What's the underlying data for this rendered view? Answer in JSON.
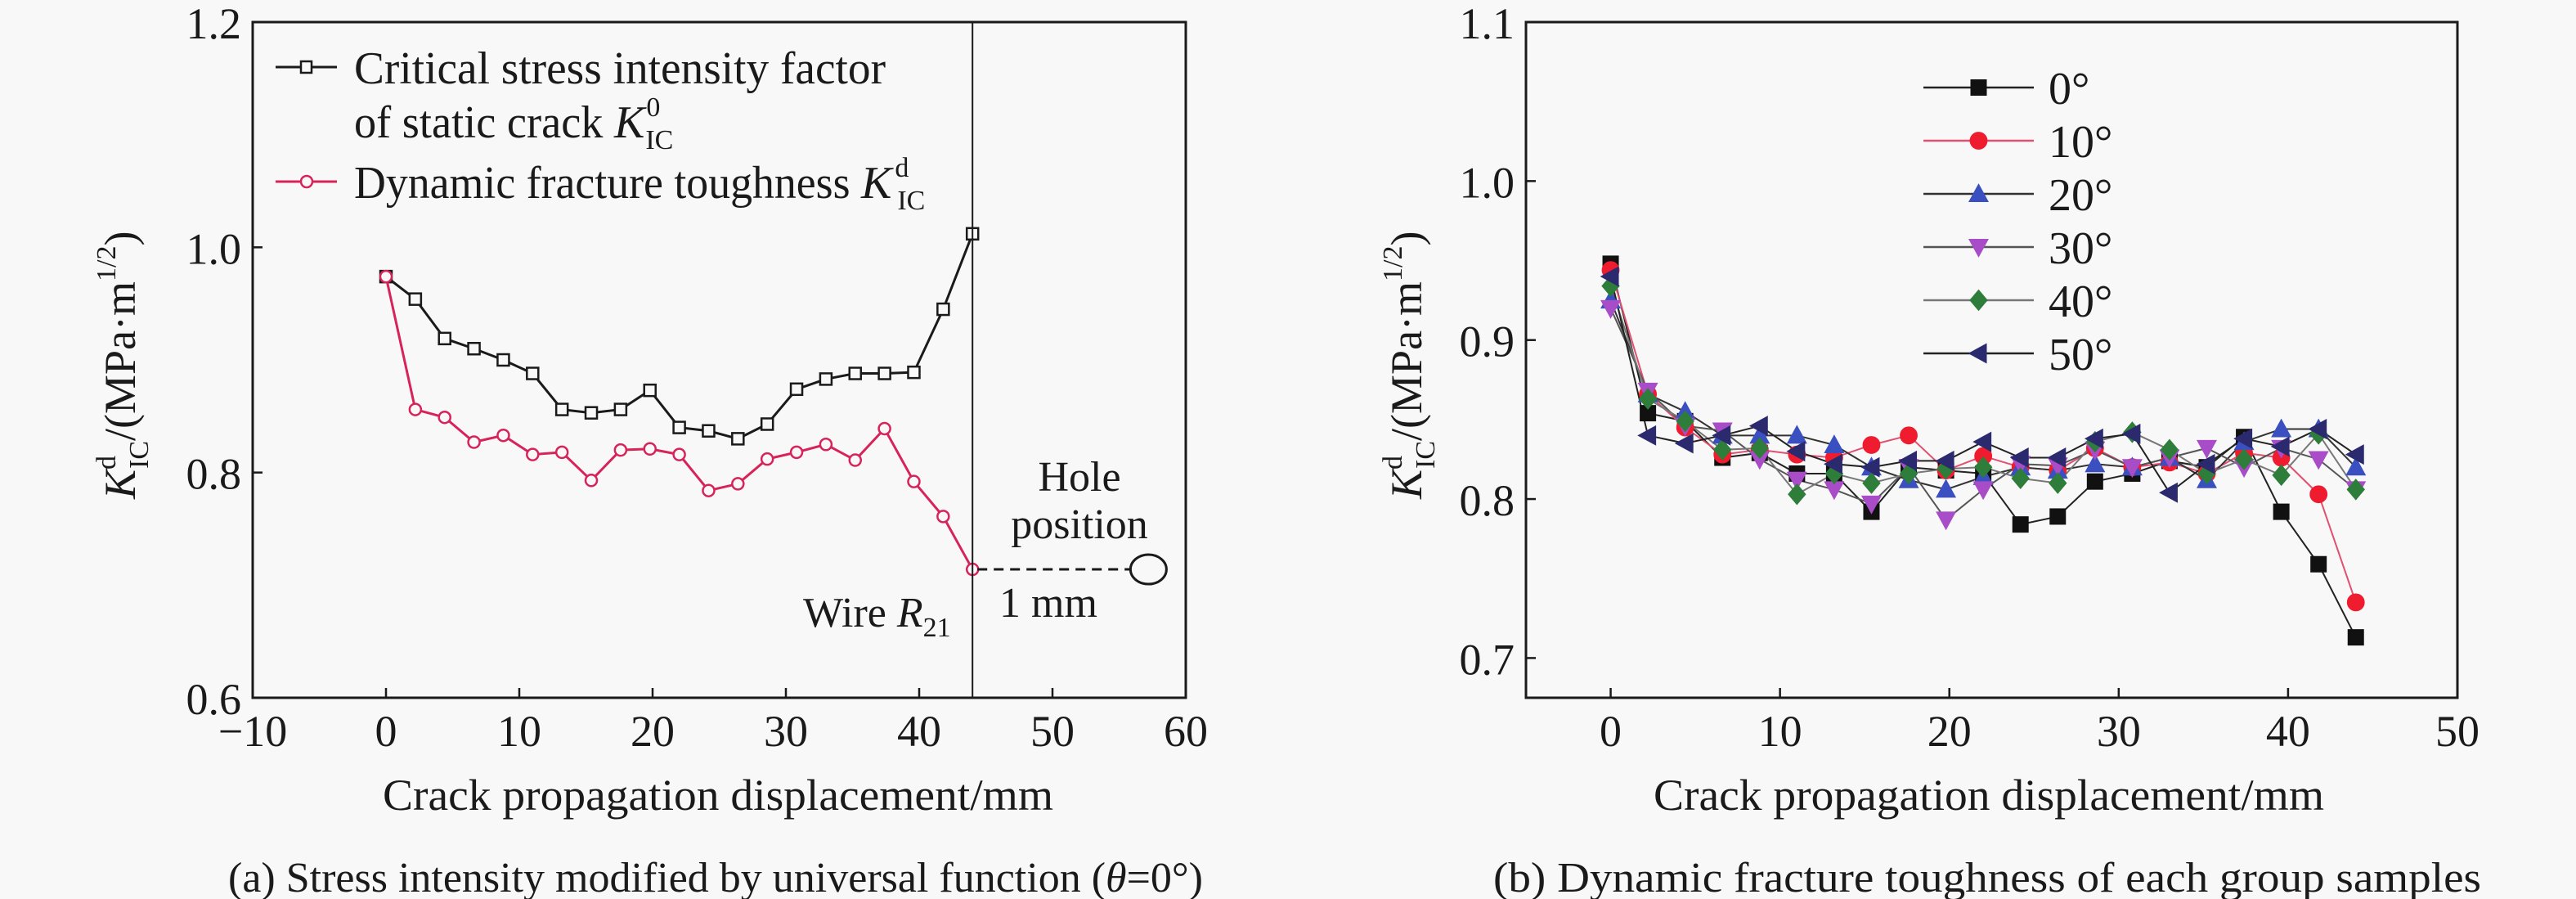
{
  "chart_data": [
    {
      "id": "a",
      "type": "line",
      "caption": "(a) Stress intensity modified by universal function (θ=0°)",
      "caption_parts": {
        "prefix": "(a) Stress intensity modified by universal function (",
        "theta": "θ",
        "suffix": "=0°)"
      },
      "xlabel": "Crack propagation displacement/mm",
      "ylabel": {
        "main": "K",
        "sup": "d",
        "sub": "IC",
        "unit": "/(MPa·m",
        "unit_sup": "1/2",
        "close": ")"
      },
      "xlim": [
        -10,
        60
      ],
      "ylim": [
        0.6,
        1.2
      ],
      "xticks": [
        -10,
        0,
        10,
        20,
        30,
        40,
        50,
        60
      ],
      "xtick_labels": [
        "−10",
        "0",
        "10",
        "20",
        "30",
        "40",
        "50",
        "60"
      ],
      "yticks": [
        0.6,
        0.8,
        1.0,
        1.2
      ],
      "ytick_labels": [
        "0.6",
        "0.8",
        "1.0",
        "1.2"
      ],
      "grid": false,
      "legend_position": "top-left",
      "x": [
        0,
        2.2,
        4.4,
        6.6,
        8.8,
        11.0,
        13.2,
        15.4,
        17.6,
        19.8,
        22.0,
        24.2,
        26.4,
        28.6,
        30.8,
        33.0,
        35.2,
        37.4,
        39.6,
        41.8,
        44.0
      ],
      "series": [
        {
          "name": "Critical stress intensity factor of static crack K⁰IC",
          "legend_lines": [
            "Critical stress intensity factor",
            "of static crack "
          ],
          "legend_k": {
            "main": "K",
            "sup": "0",
            "sub": "IC"
          },
          "marker": "open-square",
          "color": "#1a1a1a",
          "values": [
            0.974,
            0.954,
            0.919,
            0.91,
            0.9,
            0.888,
            0.856,
            0.853,
            0.856,
            0.873,
            0.84,
            0.837,
            0.83,
            0.843,
            0.874,
            0.883,
            0.888,
            0.888,
            0.889,
            0.945,
            1.012
          ]
        },
        {
          "name": "Dynamic fracture toughness KdIC",
          "legend_lines": [
            "Dynamic fracture toughness "
          ],
          "legend_k": {
            "main": "K",
            "sup": "d",
            "sub": "IC"
          },
          "marker": "open-circle",
          "color": "#d6245a",
          "values": [
            0.974,
            0.856,
            0.849,
            0.827,
            0.833,
            0.816,
            0.818,
            0.793,
            0.82,
            0.821,
            0.816,
            0.784,
            0.79,
            0.812,
            0.818,
            0.825,
            0.811,
            0.839,
            0.792,
            0.761,
            0.714
          ]
        }
      ],
      "annotations": {
        "wire_line_x": 44.0,
        "wire_label": {
          "main": "Wire ",
          "var": "R",
          "sub": "21"
        },
        "hole_label_lines": [
          "Hole",
          "position"
        ],
        "distance_label": "1 mm",
        "hole_marker_x": 57.2,
        "hole_marker_y": 0.714
      }
    },
    {
      "id": "b",
      "type": "line",
      "caption": "(b) Dynamic fracture toughness of each group samples",
      "xlabel": "Crack propagation displacement/mm",
      "ylabel": {
        "main": "K",
        "sup": "d",
        "sub": "IC",
        "unit": "/(MPa·m",
        "unit_sup": "1/2",
        "close": ")"
      },
      "xlim": [
        -5,
        50
      ],
      "ylim": [
        0.675,
        1.1
      ],
      "xticks": [
        0,
        10,
        20,
        30,
        40,
        50
      ],
      "xtick_labels": [
        "0",
        "10",
        "20",
        "30",
        "40",
        "50"
      ],
      "yticks": [
        0.7,
        0.8,
        0.9,
        1.0,
        1.1
      ],
      "ytick_labels": [
        "0.7",
        "0.8",
        "0.9",
        "1.0",
        "1.1"
      ],
      "grid": false,
      "legend_position": "top-center",
      "x": [
        0,
        2.2,
        4.4,
        6.6,
        8.8,
        11.0,
        13.2,
        15.4,
        17.6,
        19.8,
        22.0,
        24.2,
        26.4,
        28.6,
        30.8,
        33.0,
        35.2,
        37.4,
        39.6,
        41.8,
        44.0
      ],
      "series": [
        {
          "name": "0°",
          "marker": "square",
          "color": "#111111",
          "line": "#222222",
          "values": [
            0.948,
            0.854,
            0.849,
            0.826,
            0.829,
            0.816,
            0.816,
            0.792,
            0.82,
            0.818,
            0.816,
            0.784,
            0.789,
            0.811,
            0.816,
            0.824,
            0.82,
            0.839,
            0.792,
            0.759,
            0.713
          ]
        },
        {
          "name": "10°",
          "marker": "circle",
          "color": "#ee1c2e",
          "line": "#e05070",
          "values": [
            0.944,
            0.866,
            0.845,
            0.828,
            0.831,
            0.828,
            0.826,
            0.834,
            0.84,
            0.818,
            0.827,
            0.82,
            0.818,
            0.832,
            0.82,
            0.823,
            0.816,
            0.829,
            0.826,
            0.803,
            0.735
          ]
        },
        {
          "name": "20°",
          "marker": "triangle-up",
          "color": "#3a4fc0",
          "line": "#333333",
          "values": [
            0.925,
            0.866,
            0.855,
            0.84,
            0.84,
            0.84,
            0.834,
            0.82,
            0.812,
            0.806,
            0.814,
            0.82,
            0.818,
            0.822,
            0.82,
            0.826,
            0.812,
            0.836,
            0.844,
            0.844,
            0.82
          ]
        },
        {
          "name": "30°",
          "marker": "triangle-down",
          "color": "#a84cc8",
          "line": "#555555",
          "values": [
            0.92,
            0.868,
            0.846,
            0.843,
            0.825,
            0.812,
            0.806,
            0.797,
            0.82,
            0.787,
            0.806,
            0.822,
            0.821,
            0.831,
            0.82,
            0.826,
            0.832,
            0.82,
            0.832,
            0.825,
            0.806
          ]
        },
        {
          "name": "40°",
          "marker": "diamond",
          "color": "#2e7d3a",
          "line": "#777777",
          "values": [
            0.934,
            0.863,
            0.849,
            0.831,
            0.832,
            0.803,
            0.816,
            0.81,
            0.816,
            0.819,
            0.82,
            0.813,
            0.81,
            0.836,
            0.842,
            0.831,
            0.816,
            0.825,
            0.815,
            0.841,
            0.806
          ]
        },
        {
          "name": "50°",
          "marker": "triangle-left",
          "color": "#2b2a6e",
          "line": "#222222",
          "values": [
            0.94,
            0.84,
            0.835,
            0.84,
            0.846,
            0.83,
            0.822,
            0.82,
            0.824,
            0.824,
            0.836,
            0.826,
            0.826,
            0.838,
            0.841,
            0.804,
            0.822,
            0.838,
            0.833,
            0.844,
            0.828
          ]
        }
      ]
    }
  ]
}
